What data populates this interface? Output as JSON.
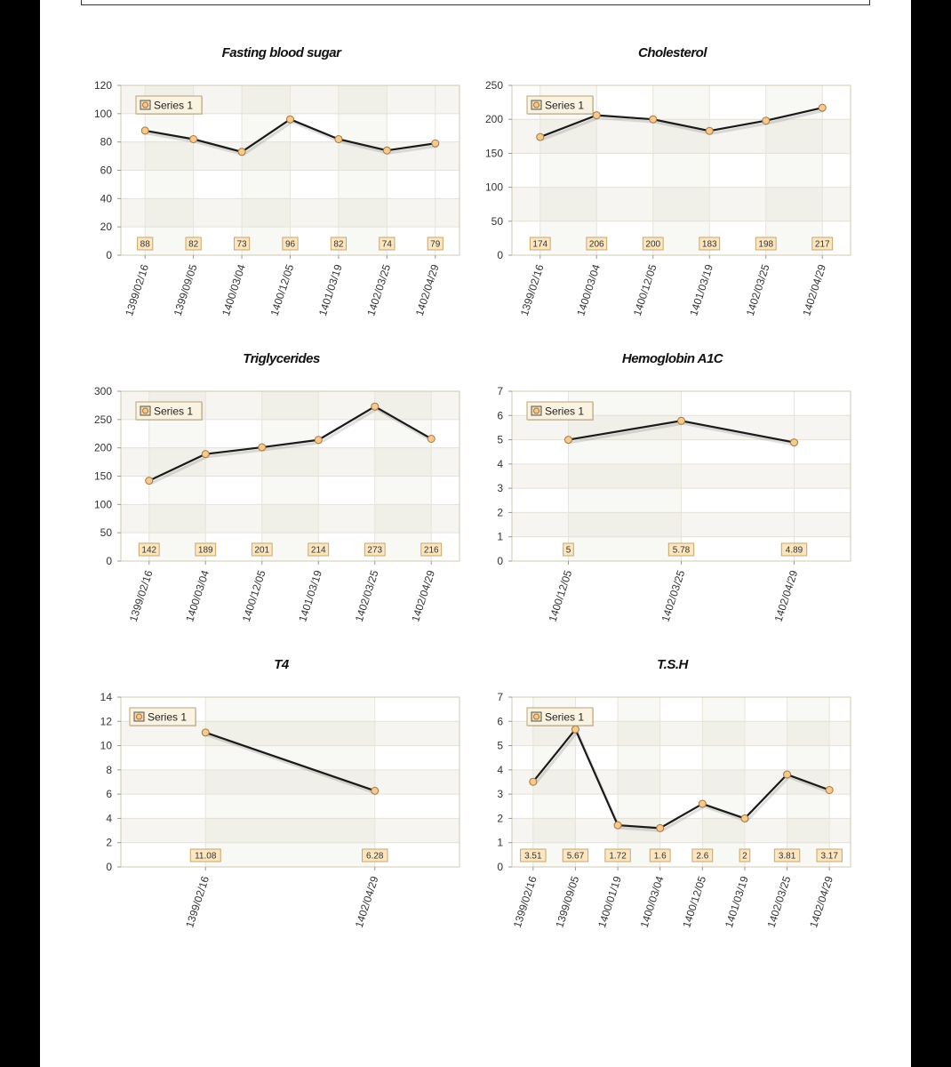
{
  "colors": {
    "line": "#1a1a1a",
    "marker_fill": "#f6c98f",
    "marker_stroke": "#a7763a",
    "label_bg": "#fbe6c0",
    "label_border": "#c9a56a",
    "plot_border": "#cfc9b0",
    "band": "#f6f5f1"
  },
  "chart_data": [
    {
      "type": "line",
      "title": "Fasting blood sugar",
      "legend": "Series 1",
      "legend_position": "top-left",
      "categories": [
        "1399/02/16",
        "1399/09/05",
        "1400/03/04",
        "1400/12/05",
        "1401/03/19",
        "1402/03/25",
        "1402/04/29"
      ],
      "values": [
        88,
        82,
        73,
        96,
        82,
        74,
        79
      ],
      "labels": [
        "88",
        "82",
        "73",
        "96",
        "82",
        "74",
        "79"
      ],
      "ylim": [
        0,
        120
      ],
      "yticks": [
        "0",
        "20",
        "40",
        "60",
        "80",
        "100",
        "120"
      ]
    },
    {
      "type": "line",
      "title": "Cholesterol",
      "legend": "Series 1",
      "legend_position": "top-left",
      "categories": [
        "1399/02/16",
        "1400/03/04",
        "1400/12/05",
        "1401/03/19",
        "1402/03/25",
        "1402/04/29"
      ],
      "values": [
        174,
        206,
        200,
        183,
        198,
        217
      ],
      "labels": [
        "174",
        "206",
        "200",
        "183",
        "198",
        "217"
      ],
      "ylim": [
        0,
        250
      ],
      "yticks": [
        "0",
        "50",
        "100",
        "150",
        "200",
        "250"
      ]
    },
    {
      "type": "line",
      "title": "Triglycerides",
      "legend": "Series 1",
      "legend_position": "top-left",
      "categories": [
        "1399/02/16",
        "1400/03/04",
        "1400/12/05",
        "1401/03/19",
        "1402/03/25",
        "1402/04/29"
      ],
      "values": [
        142,
        189,
        201,
        214,
        273,
        216
      ],
      "labels": [
        "142",
        "189",
        "201",
        "214",
        "273",
        "216"
      ],
      "ylim": [
        0,
        300
      ],
      "yticks": [
        "0",
        "50",
        "100",
        "150",
        "200",
        "250",
        "300"
      ]
    },
    {
      "type": "line",
      "title": "Hemoglobin A1C",
      "legend": "Series 1",
      "legend_position": "top-left",
      "categories": [
        "1400/12/05",
        "1402/03/25",
        "1402/04/29"
      ],
      "values": [
        5,
        5.78,
        4.89
      ],
      "labels": [
        "5",
        "5.78",
        "4.89"
      ],
      "ylim": [
        0,
        7
      ],
      "yticks": [
        "0",
        "1",
        "2",
        "3",
        "4",
        "5",
        "6",
        "7"
      ]
    },
    {
      "type": "line",
      "title": "T4",
      "legend": "Series 1",
      "legend_position": "top-left",
      "categories": [
        "1399/02/16",
        "1402/04/29"
      ],
      "values": [
        11.08,
        6.28
      ],
      "labels": [
        "11.08",
        "6.28"
      ],
      "ylim": [
        0,
        14
      ],
      "yticks": [
        "0",
        "2",
        "4",
        "6",
        "8",
        "10",
        "12",
        "14"
      ]
    },
    {
      "type": "line",
      "title": "T.S.H",
      "legend": "Series 1",
      "legend_position": "top-left",
      "categories": [
        "1399/02/16",
        "1399/09/05",
        "1400/01/19",
        "1400/03/04",
        "1400/12/05",
        "1401/03/19",
        "1402/03/25",
        "1402/04/29"
      ],
      "values": [
        3.51,
        5.67,
        1.72,
        1.6,
        2.6,
        2,
        3.81,
        3.17
      ],
      "labels": [
        "3.51",
        "5.67",
        "1.72",
        "1.6",
        "2.6",
        "2",
        "3.81",
        "3.17"
      ],
      "ylim": [
        0,
        7
      ],
      "yticks": [
        "0",
        "1",
        "2",
        "3",
        "4",
        "5",
        "6",
        "7"
      ]
    }
  ]
}
